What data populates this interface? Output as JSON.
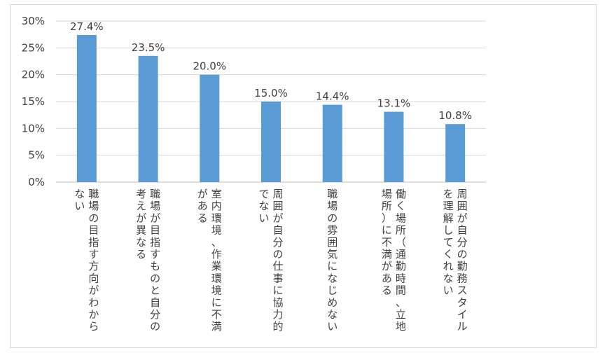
{
  "chart_data": {
    "type": "bar",
    "categories": [
      [
        "職場の目指す方向がわから",
        "ない"
      ],
      [
        "職場が目指すものと自分の",
        "考えが異なる"
      ],
      [
        "室内環境、作業環境に不満",
        "がある"
      ],
      [
        "周囲が自分の仕事に協力的",
        "でない"
      ],
      [
        "職場の雰囲気になじめない"
      ],
      [
        "働く場所（通勤時間、立地",
        "場所）に不満がある"
      ],
      [
        "周囲が自分の勤務スタイル",
        "を理解してくれない"
      ]
    ],
    "values": [
      27.4,
      23.5,
      20.0,
      15.0,
      14.4,
      13.1,
      10.8
    ],
    "data_labels": [
      "27.4%",
      "23.5%",
      "20.0%",
      "15.0%",
      "14.4%",
      "13.1%",
      "10.8%"
    ],
    "y_ticks": [
      "0%",
      "5%",
      "10%",
      "15%",
      "20%",
      "25%",
      "30%"
    ],
    "ylim": [
      0,
      30
    ],
    "grid": true,
    "bar_color": "#5b9bd5",
    "title": "",
    "xlabel": "",
    "ylabel": ""
  }
}
